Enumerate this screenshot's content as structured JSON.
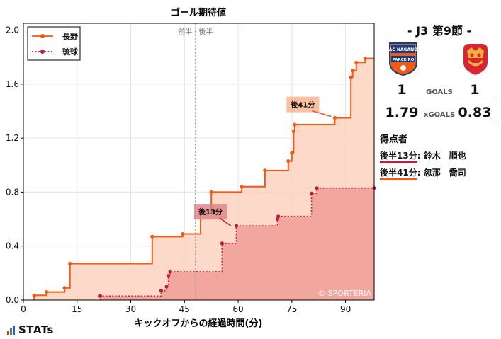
{
  "chart_data": {
    "type": "line",
    "title": "ゴール期待値",
    "xlabel": "キックオフからの経過時間(分)",
    "ylabel": "",
    "xlim": [
      0,
      98
    ],
    "ylim": [
      0,
      2.05
    ],
    "x_ticks": [
      0,
      15,
      30,
      45,
      60,
      75,
      90
    ],
    "y_ticks": [
      0.0,
      0.4,
      0.8,
      1.2,
      1.6,
      2.0
    ],
    "y_tick_labels": [
      "0.0",
      "0.4",
      "0.8",
      "1.2",
      "1.6",
      "2.0"
    ],
    "half_line_x": 48,
    "half_labels": [
      "前半",
      "後半"
    ],
    "legend_position": "top-left",
    "watermark": "© SPORTERIA",
    "series": [
      {
        "name": "長野",
        "color": "#f05a14",
        "fill": "#fcd2c0",
        "style": "solid",
        "points": [
          [
            3,
            0.035
          ],
          [
            6.5,
            0.06
          ],
          [
            11.5,
            0.09
          ],
          [
            13,
            0.27
          ],
          [
            36,
            0.47
          ],
          [
            44.5,
            0.49
          ],
          [
            49.5,
            0.64
          ],
          [
            52.5,
            0.8
          ],
          [
            61,
            0.84
          ],
          [
            67.5,
            0.96
          ],
          [
            74,
            1.03
          ],
          [
            75,
            1.09
          ],
          [
            75.5,
            1.25
          ],
          [
            75.8,
            1.3
          ],
          [
            87,
            1.35
          ],
          [
            91.5,
            1.65
          ],
          [
            92,
            1.7
          ],
          [
            93,
            1.76
          ],
          [
            95.5,
            1.79
          ]
        ]
      },
      {
        "name": "琉球",
        "color": "#c41a3c",
        "fill": "#ee9c96",
        "style": "dotted",
        "points": [
          [
            21.5,
            0.03
          ],
          [
            38.5,
            0.07
          ],
          [
            40,
            0.1
          ],
          [
            40.5,
            0.18
          ],
          [
            41,
            0.21
          ],
          [
            55.5,
            0.42
          ],
          [
            59.5,
            0.55
          ],
          [
            71,
            0.6
          ],
          [
            71.2,
            0.62
          ],
          [
            80.5,
            0.79
          ],
          [
            82,
            0.83
          ],
          [
            98,
            0.83
          ]
        ]
      }
    ],
    "annotations": [
      {
        "label": "後13分",
        "x": 58,
        "y": 0.55
      },
      {
        "label": "後41分",
        "x": 86,
        "y": 1.36
      }
    ]
  },
  "match": {
    "title": "- J3 第9節 -",
    "home_logo_text": "AC NAGANO PARCEIRO",
    "home_goals": "1",
    "away_goals": "1",
    "goals_label": "GOALS",
    "home_xg": "1.79",
    "away_xg": "0.83",
    "xg_label": "xGOALS",
    "home_color": "#f05a14",
    "away_color": "#c41a3c"
  },
  "scorers": {
    "title": "得点者",
    "list": [
      {
        "time": "後半13分",
        "sep": ":",
        "name": "鈴木　順也",
        "color": "#c41a3c"
      },
      {
        "time": "後半41分",
        "sep": ":",
        "name": "忽那　喬司",
        "color": "#f05a14"
      }
    ]
  },
  "brand": {
    "text": "STATs",
    "bar_colors": [
      "#e8332a",
      "#2d9a4a",
      "#2a5fbf"
    ]
  }
}
